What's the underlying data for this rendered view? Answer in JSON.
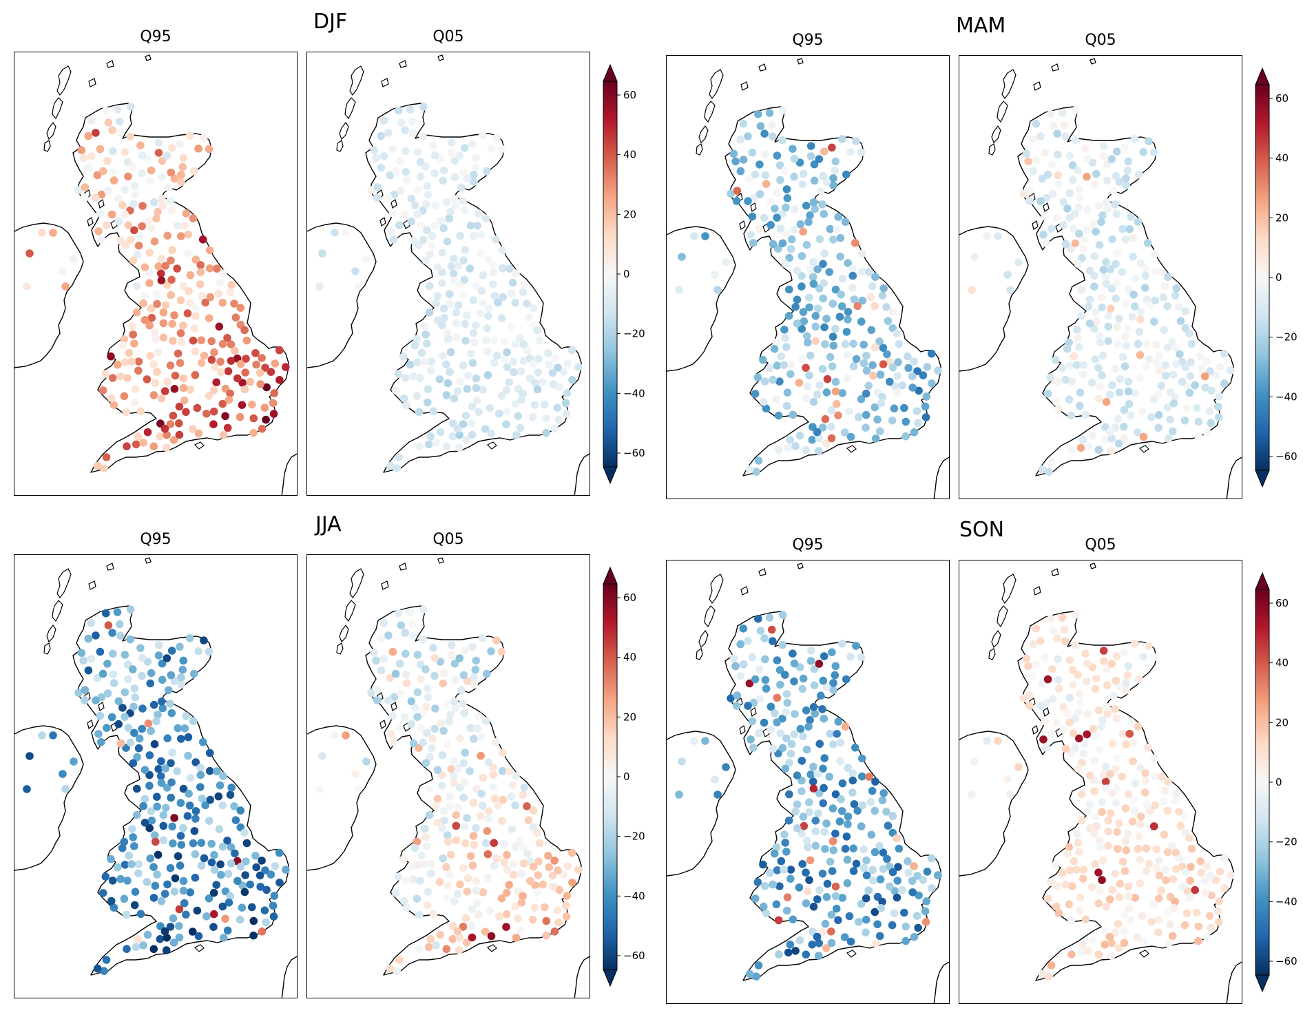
{
  "figure": {
    "seasons": [
      {
        "title": "DJF",
        "panels": [
          {
            "title": "Q95",
            "pattern": "djf_q95"
          },
          {
            "title": "Q05",
            "pattern": "djf_q05"
          }
        ]
      },
      {
        "title": "MAM",
        "panels": [
          {
            "title": "Q95",
            "pattern": "mam_q95"
          },
          {
            "title": "Q05",
            "pattern": "mam_q05"
          }
        ]
      },
      {
        "title": "JJA",
        "panels": [
          {
            "title": "Q95",
            "pattern": "jja_q95"
          },
          {
            "title": "Q05",
            "pattern": "jja_q05"
          }
        ]
      },
      {
        "title": "SON",
        "panels": [
          {
            "title": "Q95",
            "pattern": "son_q95"
          },
          {
            "title": "Q05",
            "pattern": "son_q05"
          }
        ]
      }
    ],
    "colorbar": {
      "min": -60,
      "max": 60,
      "ticks": [
        "60",
        "40",
        "20",
        "0",
        "−20",
        "−40",
        "−60"
      ],
      "colormap": "RdBu_r",
      "colors": [
        "#053061",
        "#2166ac",
        "#4393c3",
        "#92c5de",
        "#d1e5f0",
        "#f7f7f7",
        "#fddbc7",
        "#f4a582",
        "#d6604d",
        "#b2182b",
        "#67001f"
      ]
    }
  }
}
